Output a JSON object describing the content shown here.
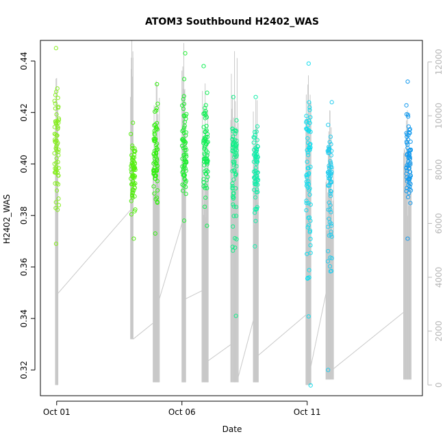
{
  "chart_data": {
    "type": "scatter",
    "title": "ATOM3 Southbound H2402_WAS",
    "xlabel": "Date",
    "ylabel": "H2402_WAS",
    "x_ticks": [
      {
        "label": "Oct 01",
        "day": 1
      },
      {
        "label": "Oct 06",
        "day": 6
      },
      {
        "label": "Oct 11",
        "day": 11
      }
    ],
    "xlim_days": [
      0.35,
      15.6
    ],
    "ylim": [
      0.31,
      0.448
    ],
    "y_ticks": [
      0.32,
      0.34,
      0.36,
      0.38,
      0.4,
      0.42,
      0.44
    ],
    "y_tick_labels": [
      "0.32",
      "0.34",
      "0.36",
      "0.38",
      "0.40",
      "0.42",
      "0.44"
    ],
    "y2_lim": [
      -400,
      12800
    ],
    "y2_ticks": [
      0,
      2000,
      4000,
      6000,
      8000,
      10000,
      12000
    ],
    "y2_tick_labels": [
      "0",
      "2000",
      "4000",
      "6000",
      "8000",
      "10000",
      "12000"
    ],
    "grid": false,
    "series": [
      {
        "points_color": "varies by date (green to blue)",
        "clusters": [
          {
            "day": 1.0,
            "ymin": 0.369,
            "ymax": 0.445,
            "center": 0.407,
            "color": "#88ee22"
          },
          {
            "day": 4.05,
            "ymin": 0.371,
            "ymax": 0.416,
            "center": 0.396,
            "color": "#55ee11"
          },
          {
            "day": 4.95,
            "ymin": 0.373,
            "ymax": 0.431,
            "center": 0.405,
            "color": "#33ee11"
          },
          {
            "day": 6.1,
            "ymin": 0.378,
            "ymax": 0.443,
            "center": 0.404,
            "color": "#22ee33"
          },
          {
            "day": 6.95,
            "ymin": 0.376,
            "ymax": 0.438,
            "center": 0.404,
            "color": "#11ee55"
          },
          {
            "day": 8.1,
            "ymin": 0.341,
            "ymax": 0.426,
            "center": 0.404,
            "color": "#11ee88"
          },
          {
            "day": 8.95,
            "ymin": 0.368,
            "ymax": 0.426,
            "center": 0.399,
            "color": "#11eeaa"
          },
          {
            "day": 11.05,
            "ymin": 0.314,
            "ymax": 0.439,
            "center": 0.4,
            "color": "#11ddee"
          },
          {
            "day": 11.9,
            "ymin": 0.32,
            "ymax": 0.424,
            "center": 0.392,
            "color": "#22ccee"
          },
          {
            "day": 15.05,
            "ymin": 0.371,
            "ymax": 0.432,
            "center": 0.4,
            "color": "#1199ee"
          }
        ]
      }
    ],
    "secondary_line": {
      "color": "#c8c8c8",
      "segments": [
        {
          "day_start": 0.95,
          "day_end": 1.05,
          "low": 0,
          "high": 11400
        },
        {
          "day_start": 1.05,
          "day_end": 3.95,
          "from": 3400,
          "to": 6500
        },
        {
          "day_start": 3.95,
          "day_end": 4.05,
          "low": 1700,
          "high": 12800
        },
        {
          "day_start": 4.05,
          "day_end": 4.85,
          "from": 1700,
          "to": 2300
        },
        {
          "day_start": 4.85,
          "day_end": 5.1,
          "low": 100,
          "high": 11300
        },
        {
          "day_start": 5.1,
          "day_end": 6.0,
          "from": 3200,
          "to": 6000
        },
        {
          "day_start": 6.0,
          "day_end": 6.15,
          "low": 100,
          "high": 12700
        },
        {
          "day_start": 6.15,
          "day_end": 6.8,
          "from": 3200,
          "to": 3500
        },
        {
          "day_start": 6.8,
          "day_end": 7.05,
          "low": 100,
          "high": 11200
        },
        {
          "day_start": 7.05,
          "day_end": 7.95,
          "from": 900,
          "to": 1500
        },
        {
          "day_start": 7.95,
          "day_end": 8.25,
          "low": 100,
          "high": 12400
        },
        {
          "day_start": 8.25,
          "day_end": 8.85,
          "from": 300,
          "to": 2400
        },
        {
          "day_start": 8.85,
          "day_end": 9.05,
          "low": 100,
          "high": 10600
        },
        {
          "day_start": 9.05,
          "day_end": 10.95,
          "from": 1100,
          "to": 2600
        },
        {
          "day_start": 10.95,
          "day_end": 11.15,
          "low": 0,
          "high": 11500
        },
        {
          "day_start": 11.15,
          "day_end": 11.75,
          "from": 700,
          "to": 3400
        },
        {
          "day_start": 11.75,
          "day_end": 12.05,
          "low": 200,
          "high": 10200
        },
        {
          "day_start": 12.05,
          "day_end": 14.85,
          "from": 600,
          "to": 2700
        },
        {
          "day_start": 14.85,
          "day_end": 15.15,
          "low": 200,
          "high": 10200
        }
      ]
    }
  }
}
